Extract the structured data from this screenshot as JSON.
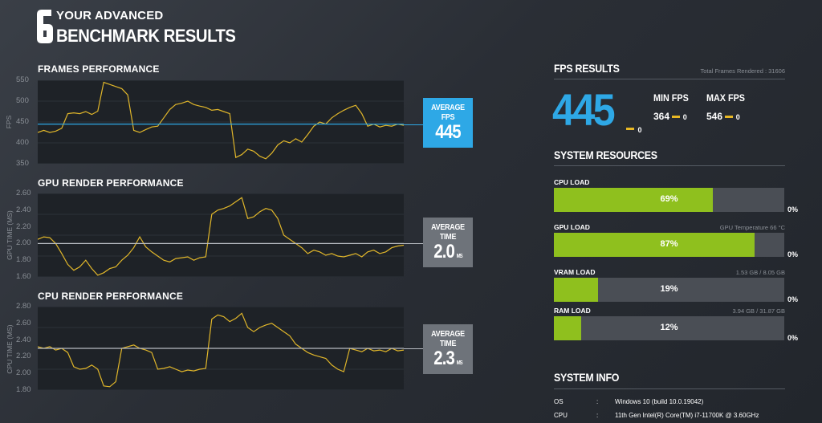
{
  "header": {
    "logo_glyph": "6",
    "line1": "YOUR ADVANCED",
    "line2": "BENCHMARK RESULTS"
  },
  "frames": {
    "title": "FRAMES PERFORMANCE",
    "ylabel": "FPS",
    "ticks": [
      "550",
      "500",
      "450",
      "400",
      "350"
    ],
    "badge_label": "AVERAGE FPS",
    "badge_value": "445",
    "badge_unit": ""
  },
  "gpu": {
    "title": "GPU RENDER PERFORMANCE",
    "ylabel": "GPU TIME (MS)",
    "ticks": [
      "2.60",
      "2.40",
      "2.20",
      "2.00",
      "1.80",
      "1.60"
    ],
    "badge_label": "AVERAGE TIME",
    "badge_value": "2.0",
    "badge_unit": "MS"
  },
  "cpu": {
    "title": "CPU RENDER PERFORMANCE",
    "ylabel": "CPU TIME (MS)",
    "ticks": [
      "2.80",
      "2.60",
      "2.40",
      "2.20",
      "2.00",
      "1.80"
    ],
    "badge_label": "AVERAGE TIME",
    "badge_value": "2.3",
    "badge_unit": "MS"
  },
  "fps_results": {
    "title": "FPS RESULTS",
    "total_frames": "Total Frames Rendered : 31606",
    "avg": "445",
    "avg_delta": "0",
    "min_label": "MIN FPS",
    "min_value": "364",
    "min_delta": "0",
    "max_label": "MAX FPS",
    "max_value": "546",
    "max_delta": "0"
  },
  "system_resources": {
    "title": "SYSTEM RESOURCES",
    "items": [
      {
        "label": "CPU LOAD",
        "pct": "69%",
        "fraction": 0.69,
        "info": "",
        "delta": "0%"
      },
      {
        "label": "GPU LOAD",
        "pct": "87%",
        "fraction": 0.87,
        "info": "GPU Temperature 66 °C",
        "delta": "0%"
      },
      {
        "label": "VRAM LOAD",
        "pct": "19%",
        "fraction": 0.19,
        "info": "1.53 GB / 8.05 GB",
        "delta": "0%"
      },
      {
        "label": "RAM LOAD",
        "pct": "12%",
        "fraction": 0.12,
        "info": "3.94 GB / 31.87 GB",
        "delta": "0%"
      }
    ]
  },
  "system_info": {
    "title": "SYSTEM INFO",
    "rows": [
      {
        "key": "OS",
        "sep": ":",
        "value": "Windows 10 (build 10.0.19042)"
      },
      {
        "key": "CPU",
        "sep": ":",
        "value": "11th Gen Intel(R) Core(TM) i7-11700K @ 3.60GHz"
      }
    ]
  },
  "colors": {
    "accent_blue": "#2ea8e6",
    "bar_green": "#8fc01e",
    "line_yellow": "#e0b62a",
    "delta_yellow": "#e8b824"
  },
  "chart_data": [
    {
      "type": "line",
      "title": "FRAMES PERFORMANCE",
      "ylabel": "FPS",
      "ylim": [
        350,
        550
      ],
      "average": 445,
      "series": [
        {
          "values": [
            425,
            430,
            425,
            428,
            435,
            470,
            472,
            470,
            475,
            468,
            476,
            545,
            540,
            535,
            530,
            515,
            430,
            425,
            432,
            438,
            440,
            460,
            480,
            492,
            495,
            500,
            492,
            488,
            485,
            478,
            480,
            475,
            470,
            365,
            372,
            385,
            380,
            368,
            362,
            375,
            395,
            405,
            400,
            410,
            402,
            420,
            440,
            450,
            445,
            460,
            470,
            478,
            485,
            490,
            470,
            440,
            445,
            438,
            442,
            440,
            445,
            442
          ]
        }
      ]
    },
    {
      "type": "line",
      "title": "GPU RENDER PERFORMANCE",
      "ylabel": "GPU TIME (MS)",
      "ylim": [
        1.6,
        2.6
      ],
      "average": 2.0,
      "series": [
        {
          "values": [
            2.05,
            2.08,
            2.07,
            2.0,
            1.88,
            1.75,
            1.68,
            1.72,
            1.8,
            1.7,
            1.62,
            1.65,
            1.7,
            1.72,
            1.8,
            1.86,
            1.95,
            2.08,
            1.96,
            1.9,
            1.85,
            1.8,
            1.78,
            1.82,
            1.83,
            1.84,
            1.8,
            1.83,
            1.84,
            2.35,
            2.4,
            2.42,
            2.45,
            2.5,
            2.55,
            2.3,
            2.32,
            2.38,
            2.42,
            2.4,
            2.3,
            2.1,
            2.05,
            2.0,
            1.95,
            1.88,
            1.92,
            1.9,
            1.86,
            1.88,
            1.85,
            1.84,
            1.86,
            1.88,
            1.84,
            1.9,
            1.92,
            1.88,
            1.9,
            1.95,
            1.97,
            1.98
          ]
        }
      ]
    },
    {
      "type": "line",
      "title": "CPU RENDER PERFORMANCE",
      "ylabel": "CPU TIME (MS)",
      "ylim": [
        1.8,
        2.8
      ],
      "average": 2.3,
      "series": [
        {
          "values": [
            2.32,
            2.3,
            2.32,
            2.28,
            2.3,
            2.25,
            2.08,
            2.05,
            2.06,
            2.1,
            2.05,
            1.85,
            1.84,
            1.9,
            2.3,
            2.32,
            2.34,
            2.3,
            2.28,
            2.25,
            2.05,
            2.06,
            2.08,
            2.05,
            2.02,
            2.04,
            2.03,
            2.05,
            2.06,
            2.65,
            2.7,
            2.68,
            2.62,
            2.66,
            2.72,
            2.55,
            2.5,
            2.55,
            2.58,
            2.6,
            2.55,
            2.5,
            2.45,
            2.35,
            2.3,
            2.25,
            2.22,
            2.2,
            2.18,
            2.1,
            2.05,
            2.02,
            2.3,
            2.28,
            2.26,
            2.3,
            2.27,
            2.28,
            2.26,
            2.3,
            2.27,
            2.28
          ]
        }
      ]
    }
  ]
}
